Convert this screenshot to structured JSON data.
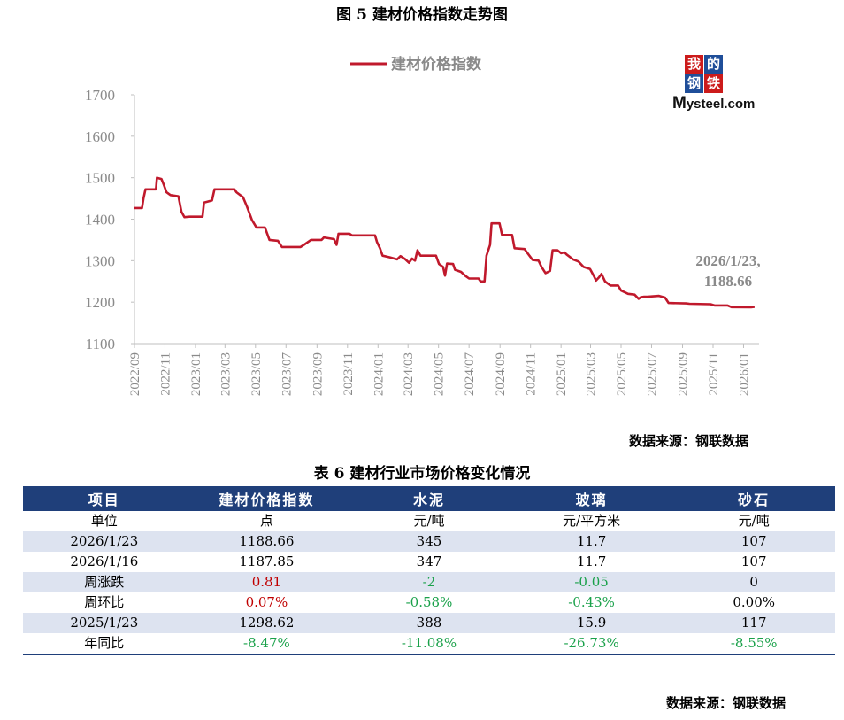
{
  "figure_title": "图 5  建材价格指数走势图",
  "chart_source": "数据来源：钢联数据",
  "logo": {
    "cells": [
      "我",
      "的",
      "钢",
      "铁"
    ],
    "text_big": "M",
    "text_rest": "ysteel.com"
  },
  "chart_data": {
    "type": "line",
    "title": "",
    "xlabel": "",
    "ylabel": "",
    "ylim": [
      1100,
      1700
    ],
    "yticks": [
      1100,
      1200,
      1300,
      1400,
      1500,
      1600,
      1700
    ],
    "xlim": [
      "2022-09-01",
      "2026-02-01"
    ],
    "xticks": [
      "2022/09",
      "2022/11",
      "2023/01",
      "2023/03",
      "2023/05",
      "2023/07",
      "2023/09",
      "2023/11",
      "2024/01",
      "2024/03",
      "2024/05",
      "2024/07",
      "2024/09",
      "2024/11",
      "2025/01",
      "2025/03",
      "2025/05",
      "2025/07",
      "2025/09",
      "2025/11",
      "2026/01"
    ],
    "grid": false,
    "legend_position": "top",
    "line_color": "#c0192c",
    "annotation": {
      "lines": [
        "2026/1/23,",
        "1188.66"
      ],
      "x": "2026-01-23",
      "y": 1188.66
    },
    "series": [
      {
        "name": "建材价格指数",
        "points": [
          [
            "2022-09-01",
            1427
          ],
          [
            "2022-09-16",
            1427
          ],
          [
            "2022-09-19",
            1450
          ],
          [
            "2022-09-23",
            1472
          ],
          [
            "2022-10-14",
            1472
          ],
          [
            "2022-10-16",
            1500
          ],
          [
            "2022-10-25",
            1497
          ],
          [
            "2022-10-29",
            1485
          ],
          [
            "2022-11-04",
            1465
          ],
          [
            "2022-11-12",
            1458
          ],
          [
            "2022-11-28",
            1455
          ],
          [
            "2022-12-04",
            1418
          ],
          [
            "2022-12-10",
            1405
          ],
          [
            "2022-12-20",
            1406
          ],
          [
            "2023-01-15",
            1406
          ],
          [
            "2023-01-18",
            1440
          ],
          [
            "2023-02-03",
            1445
          ],
          [
            "2023-02-08",
            1472
          ],
          [
            "2023-03-20",
            1472
          ],
          [
            "2023-03-24",
            1465
          ],
          [
            "2023-04-06",
            1453
          ],
          [
            "2023-04-14",
            1430
          ],
          [
            "2023-04-24",
            1398
          ],
          [
            "2023-05-03",
            1380
          ],
          [
            "2023-05-20",
            1380
          ],
          [
            "2023-05-29",
            1350
          ],
          [
            "2023-06-15",
            1348
          ],
          [
            "2023-06-23",
            1333
          ],
          [
            "2023-07-30",
            1333
          ],
          [
            "2023-08-08",
            1340
          ],
          [
            "2023-08-20",
            1350
          ],
          [
            "2023-09-10",
            1350
          ],
          [
            "2023-09-15",
            1356
          ],
          [
            "2023-10-05",
            1352
          ],
          [
            "2023-10-10",
            1338
          ],
          [
            "2023-10-14",
            1365
          ],
          [
            "2023-11-05",
            1365
          ],
          [
            "2023-11-10",
            1361
          ],
          [
            "2023-12-26",
            1361
          ],
          [
            "2023-12-30",
            1345
          ],
          [
            "2024-01-05",
            1330
          ],
          [
            "2024-01-10",
            1312
          ],
          [
            "2024-01-25",
            1308
          ],
          [
            "2024-02-08",
            1303
          ],
          [
            "2024-02-15",
            1311
          ],
          [
            "2024-02-24",
            1304
          ],
          [
            "2024-03-03",
            1295
          ],
          [
            "2024-03-09",
            1305
          ],
          [
            "2024-03-15",
            1300
          ],
          [
            "2024-03-20",
            1325
          ],
          [
            "2024-03-26",
            1312
          ],
          [
            "2024-04-26",
            1312
          ],
          [
            "2024-05-02",
            1292
          ],
          [
            "2024-05-10",
            1285
          ],
          [
            "2024-05-14",
            1264
          ],
          [
            "2024-05-18",
            1293
          ],
          [
            "2024-05-30",
            1292
          ],
          [
            "2024-06-03",
            1278
          ],
          [
            "2024-06-15",
            1273
          ],
          [
            "2024-06-25",
            1262
          ],
          [
            "2024-07-01",
            1257
          ],
          [
            "2024-07-20",
            1257
          ],
          [
            "2024-07-24",
            1250
          ],
          [
            "2024-08-01",
            1250
          ],
          [
            "2024-08-05",
            1312
          ],
          [
            "2024-08-12",
            1338
          ],
          [
            "2024-08-15",
            1390
          ],
          [
            "2024-08-31",
            1390
          ],
          [
            "2024-09-05",
            1362
          ],
          [
            "2024-09-25",
            1362
          ],
          [
            "2024-09-30",
            1330
          ],
          [
            "2024-10-20",
            1328
          ],
          [
            "2024-10-26",
            1318
          ],
          [
            "2024-11-05",
            1302
          ],
          [
            "2024-11-17",
            1300
          ],
          [
            "2024-11-23",
            1285
          ],
          [
            "2024-12-01",
            1270
          ],
          [
            "2024-12-10",
            1275
          ],
          [
            "2024-12-15",
            1325
          ],
          [
            "2024-12-25",
            1325
          ],
          [
            "2025-01-01",
            1318
          ],
          [
            "2025-01-08",
            1320
          ],
          [
            "2025-01-12",
            1315
          ],
          [
            "2025-01-25",
            1303
          ],
          [
            "2025-02-05",
            1298
          ],
          [
            "2025-02-15",
            1285
          ],
          [
            "2025-02-28",
            1280
          ],
          [
            "2025-03-08",
            1262
          ],
          [
            "2025-03-12",
            1252
          ],
          [
            "2025-03-18",
            1260
          ],
          [
            "2025-03-23",
            1268
          ],
          [
            "2025-03-30",
            1250
          ],
          [
            "2025-04-10",
            1240
          ],
          [
            "2025-04-25",
            1240
          ],
          [
            "2025-05-01",
            1228
          ],
          [
            "2025-05-15",
            1220
          ],
          [
            "2025-05-28",
            1218
          ],
          [
            "2025-06-05",
            1208
          ],
          [
            "2025-06-10",
            1212
          ],
          [
            "2025-06-16",
            1213
          ],
          [
            "2025-06-23",
            1213
          ],
          [
            "2025-07-16",
            1215
          ],
          [
            "2025-07-28",
            1211
          ],
          [
            "2025-08-04",
            1198
          ],
          [
            "2025-09-08",
            1197
          ],
          [
            "2025-09-15",
            1196
          ],
          [
            "2025-10-27",
            1195
          ],
          [
            "2025-11-04",
            1192
          ],
          [
            "2025-11-30",
            1192
          ],
          [
            "2025-12-08",
            1188
          ],
          [
            "2026-01-16",
            1187.85
          ],
          [
            "2026-01-23",
            1188.66
          ]
        ]
      }
    ]
  },
  "table": {
    "title": "表 6 建材行业市场价格变化情况",
    "headers": [
      "项目",
      "建材价格指数",
      "水泥",
      "玻璃",
      "砂石"
    ],
    "rows": [
      {
        "cells": [
          "单位",
          "点",
          "元/吨",
          "元/平方米",
          "元/吨"
        ],
        "colors": [
          "",
          "",
          "",
          "",
          ""
        ]
      },
      {
        "cells": [
          "2026/1/23",
          "1188.66",
          "345",
          "11.7",
          "107"
        ],
        "colors": [
          "",
          "",
          "",
          "",
          ""
        ]
      },
      {
        "cells": [
          "2026/1/16",
          "1187.85",
          "347",
          "11.7",
          "107"
        ],
        "colors": [
          "",
          "",
          "",
          "",
          ""
        ]
      },
      {
        "cells": [
          "周涨跌",
          "0.81",
          "-2",
          "-0.05",
          "0"
        ],
        "colors": [
          "",
          "red",
          "green",
          "green",
          ""
        ]
      },
      {
        "cells": [
          "周环比",
          "0.07%",
          "-0.58%",
          "-0.43%",
          "0.00%"
        ],
        "colors": [
          "",
          "red",
          "green",
          "green",
          ""
        ]
      },
      {
        "cells": [
          "2025/1/23",
          "1298.62",
          "388",
          "15.9",
          "117"
        ],
        "colors": [
          "",
          "",
          "",
          "",
          ""
        ]
      },
      {
        "cells": [
          "年同比",
          "-8.47%",
          "-11.08%",
          "-26.73%",
          "-8.55%"
        ],
        "colors": [
          "",
          "green",
          "green",
          "green",
          "green"
        ]
      }
    ]
  },
  "bottom_source": "数据来源：钢联数据"
}
